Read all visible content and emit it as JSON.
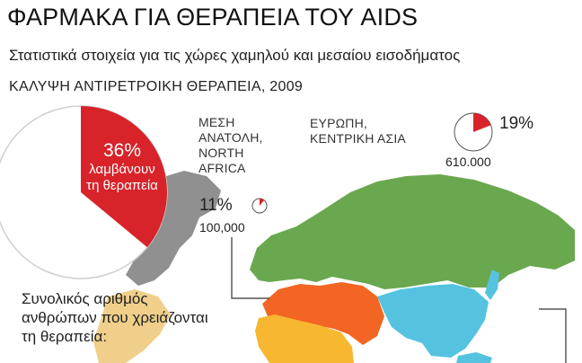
{
  "header": {
    "title": "ΦΑΡΜΑΚΑ ΓΙΑ ΘΕΡΑΠΕΙΑ ΤΟΥ AIDS",
    "subtitle": "Στατιστικά στοιχεία για τις χώρες χαμηλού και μεσαίου εισοδήματος",
    "section": "ΚΑΛΥΨΗ ΑΝΤΙΡΕΤΡΟΙΚΗ ΘΕΡΑΠΕΙΑ, 2009"
  },
  "main_pie": {
    "percent_label": "36%",
    "line1": "λαμβάνουν",
    "line2": "τη θεραπεία",
    "coverage_fraction": 0.36,
    "fill_color": "#d8232a"
  },
  "regions": {
    "mena": {
      "name_lines": [
        "ΜΕΣΗ",
        "ΑΝΑΤΟΛΗ,",
        "NORTH",
        "AFRICA"
      ],
      "percent": "11%",
      "count": "100,000",
      "coverage_fraction": 0.11
    },
    "europe": {
      "name_lines": [
        "ΕΥΡΩΠΗ,",
        "ΚΕΝΤΡΙΚΗ ΑΣΙΑ"
      ],
      "percent": "19%",
      "count": "610.000",
      "coverage_fraction": 0.19
    }
  },
  "note": {
    "line1": "Συνολικός αριθμός",
    "line2": "ανθρώπων που χρειάζονται",
    "line3": "τη θεραπεία:"
  },
  "colors": {
    "europe_asia": "#6aa84f",
    "middle_east": "#f26522",
    "africa": "#f7b731",
    "south_asia": "#55c3e0",
    "americas": "#8a8a8a",
    "accent_red": "#d8232a"
  }
}
